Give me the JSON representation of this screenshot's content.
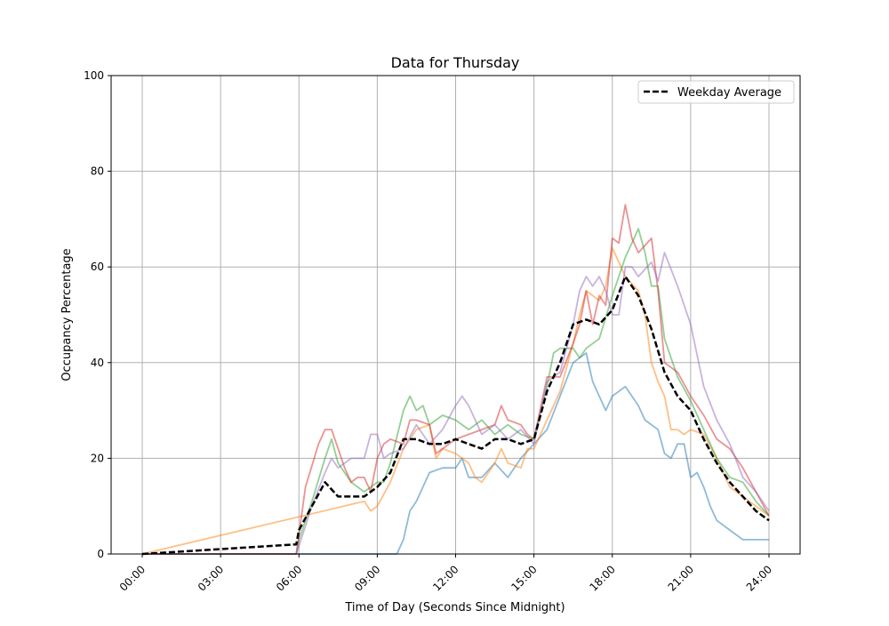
{
  "chart_data": {
    "type": "line",
    "title": "Data for Thursday",
    "xlabel": "Time of Day (Seconds Since Midnight)",
    "ylabel": "Occupancy Percentage",
    "ylim": [
      0,
      100
    ],
    "yticks": [
      0,
      20,
      40,
      60,
      80,
      100
    ],
    "xticks": [
      "00:00",
      "03:00",
      "06:00",
      "09:00",
      "12:00",
      "15:00",
      "18:00",
      "21:00",
      "24:00"
    ],
    "grid": true,
    "legend_placement": "top-right",
    "series": [
      {
        "color": "#1f77b4",
        "alpha": 0.5,
        "style": "solid",
        "points": [
          [
            "00:00",
            0
          ],
          [
            "09:45",
            0
          ],
          [
            "10:00",
            3
          ],
          [
            "10:15",
            9
          ],
          [
            "10:30",
            11
          ],
          [
            "11:00",
            17
          ],
          [
            "11:30",
            18
          ],
          [
            "12:00",
            18
          ],
          [
            "12:15",
            20
          ],
          [
            "12:30",
            16
          ],
          [
            "13:00",
            16
          ],
          [
            "13:30",
            19
          ],
          [
            "14:00",
            16
          ],
          [
            "14:30",
            20
          ],
          [
            "15:00",
            23
          ],
          [
            "15:30",
            26
          ],
          [
            "16:00",
            33
          ],
          [
            "16:30",
            40
          ],
          [
            "17:00",
            42
          ],
          [
            "17:15",
            36
          ],
          [
            "17:45",
            30
          ],
          [
            "18:00",
            33
          ],
          [
            "18:30",
            35
          ],
          [
            "18:45",
            33
          ],
          [
            "19:00",
            31
          ],
          [
            "19:15",
            28
          ],
          [
            "19:45",
            26
          ],
          [
            "20:00",
            21
          ],
          [
            "20:15",
            20
          ],
          [
            "20:30",
            23
          ],
          [
            "20:45",
            23
          ],
          [
            "21:00",
            16
          ],
          [
            "21:15",
            17
          ],
          [
            "21:30",
            14
          ],
          [
            "21:45",
            10
          ],
          [
            "22:00",
            7
          ],
          [
            "22:30",
            5
          ],
          [
            "23:00",
            3
          ],
          [
            "24:00",
            3
          ]
        ]
      },
      {
        "color": "#ff7f0e",
        "alpha": 0.5,
        "style": "solid",
        "points": [
          [
            "00:00",
            0
          ],
          [
            "08:30",
            11
          ],
          [
            "08:45",
            9
          ],
          [
            "09:00",
            10
          ],
          [
            "09:30",
            15
          ],
          [
            "10:00",
            22
          ],
          [
            "10:30",
            26
          ],
          [
            "11:00",
            27
          ],
          [
            "11:15",
            20
          ],
          [
            "11:30",
            22
          ],
          [
            "12:00",
            21
          ],
          [
            "12:30",
            19
          ],
          [
            "12:45",
            16
          ],
          [
            "13:00",
            15
          ],
          [
            "13:30",
            19
          ],
          [
            "13:45",
            22
          ],
          [
            "14:00",
            19
          ],
          [
            "14:30",
            18
          ],
          [
            "14:45",
            22
          ],
          [
            "15:00",
            22
          ],
          [
            "15:30",
            28
          ],
          [
            "16:00",
            34
          ],
          [
            "16:30",
            44
          ],
          [
            "16:45",
            50
          ],
          [
            "17:00",
            55
          ],
          [
            "17:30",
            53
          ],
          [
            "17:45",
            56
          ],
          [
            "18:00",
            64
          ],
          [
            "18:30",
            58
          ],
          [
            "19:00",
            55
          ],
          [
            "19:15",
            50
          ],
          [
            "19:30",
            40
          ],
          [
            "19:45",
            36
          ],
          [
            "20:00",
            33
          ],
          [
            "20:15",
            26
          ],
          [
            "20:30",
            26
          ],
          [
            "20:45",
            25
          ],
          [
            "21:00",
            26
          ],
          [
            "21:30",
            25
          ],
          [
            "22:00",
            20
          ],
          [
            "22:30",
            14
          ],
          [
            "23:00",
            12
          ],
          [
            "23:30",
            10
          ],
          [
            "24:00",
            8
          ]
        ]
      },
      {
        "color": "#2ca02c",
        "alpha": 0.5,
        "style": "solid",
        "points": [
          [
            "00:00",
            0
          ],
          [
            "05:54",
            0
          ],
          [
            "06:00",
            3
          ],
          [
            "06:30",
            11
          ],
          [
            "07:00",
            20
          ],
          [
            "07:15",
            24
          ],
          [
            "07:30",
            19
          ],
          [
            "08:00",
            15
          ],
          [
            "08:30",
            13
          ],
          [
            "09:00",
            15
          ],
          [
            "09:15",
            15
          ],
          [
            "09:30",
            19
          ],
          [
            "10:00",
            30
          ],
          [
            "10:15",
            33
          ],
          [
            "10:30",
            30
          ],
          [
            "10:45",
            31
          ],
          [
            "11:00",
            27
          ],
          [
            "11:30",
            29
          ],
          [
            "12:00",
            28
          ],
          [
            "12:30",
            26
          ],
          [
            "13:00",
            28
          ],
          [
            "13:30",
            25
          ],
          [
            "14:00",
            27
          ],
          [
            "14:30",
            25
          ],
          [
            "15:00",
            24
          ],
          [
            "15:30",
            35
          ],
          [
            "15:45",
            42
          ],
          [
            "16:00",
            43
          ],
          [
            "16:30",
            43
          ],
          [
            "16:45",
            41
          ],
          [
            "17:00",
            43
          ],
          [
            "17:30",
            45
          ],
          [
            "18:00",
            54
          ],
          [
            "18:30",
            62
          ],
          [
            "18:45",
            65
          ],
          [
            "19:00",
            68
          ],
          [
            "19:15",
            63
          ],
          [
            "19:30",
            56
          ],
          [
            "19:45",
            56
          ],
          [
            "20:00",
            45
          ],
          [
            "20:15",
            41
          ],
          [
            "20:30",
            37
          ],
          [
            "21:00",
            32
          ],
          [
            "21:30",
            26
          ],
          [
            "22:00",
            20
          ],
          [
            "22:30",
            16
          ],
          [
            "23:00",
            15
          ],
          [
            "23:30",
            11
          ],
          [
            "24:00",
            8
          ]
        ]
      },
      {
        "color": "#d62728",
        "alpha": 0.5,
        "style": "solid",
        "points": [
          [
            "00:00",
            0
          ],
          [
            "05:54",
            0
          ],
          [
            "06:15",
            14
          ],
          [
            "06:45",
            23
          ],
          [
            "07:00",
            26
          ],
          [
            "07:15",
            26
          ],
          [
            "07:45",
            18
          ],
          [
            "08:00",
            15
          ],
          [
            "08:15",
            16
          ],
          [
            "08:30",
            16
          ],
          [
            "08:45",
            13
          ],
          [
            "09:00",
            20
          ],
          [
            "09:15",
            23
          ],
          [
            "09:30",
            24
          ],
          [
            "10:00",
            23
          ],
          [
            "10:15",
            28
          ],
          [
            "10:30",
            28
          ],
          [
            "11:00",
            27
          ],
          [
            "11:15",
            21
          ],
          [
            "11:30",
            22
          ],
          [
            "12:00",
            24
          ],
          [
            "12:30",
            25
          ],
          [
            "13:00",
            26
          ],
          [
            "13:30",
            27
          ],
          [
            "13:45",
            31
          ],
          [
            "14:00",
            28
          ],
          [
            "14:30",
            27
          ],
          [
            "14:45",
            25
          ],
          [
            "15:00",
            24
          ],
          [
            "15:30",
            37
          ],
          [
            "16:00",
            37
          ],
          [
            "16:30",
            44
          ],
          [
            "16:45",
            48
          ],
          [
            "17:00",
            55
          ],
          [
            "17:15",
            48
          ],
          [
            "17:30",
            54
          ],
          [
            "17:45",
            52
          ],
          [
            "18:00",
            66
          ],
          [
            "18:15",
            65
          ],
          [
            "18:30",
            73
          ],
          [
            "18:45",
            66
          ],
          [
            "19:00",
            63
          ],
          [
            "19:30",
            66
          ],
          [
            "19:45",
            55
          ],
          [
            "20:00",
            40
          ],
          [
            "20:30",
            38
          ],
          [
            "21:00",
            33
          ],
          [
            "21:30",
            29
          ],
          [
            "22:00",
            24
          ],
          [
            "22:30",
            22
          ],
          [
            "23:00",
            18
          ],
          [
            "23:30",
            13
          ],
          [
            "24:00",
            8
          ]
        ]
      },
      {
        "color": "#9467bd",
        "alpha": 0.5,
        "style": "solid",
        "points": [
          [
            "00:00",
            0
          ],
          [
            "05:54",
            0
          ],
          [
            "06:30",
            10
          ],
          [
            "07:00",
            17
          ],
          [
            "07:15",
            20
          ],
          [
            "07:30",
            18
          ],
          [
            "08:00",
            20
          ],
          [
            "08:30",
            20
          ],
          [
            "08:45",
            25
          ],
          [
            "09:00",
            25
          ],
          [
            "09:15",
            20
          ],
          [
            "09:30",
            21
          ],
          [
            "10:00",
            22
          ],
          [
            "10:30",
            27
          ],
          [
            "11:00",
            23
          ],
          [
            "11:30",
            26
          ],
          [
            "12:00",
            31
          ],
          [
            "12:15",
            33
          ],
          [
            "12:30",
            31
          ],
          [
            "13:00",
            25
          ],
          [
            "13:30",
            27
          ],
          [
            "14:00",
            24
          ],
          [
            "14:30",
            26
          ],
          [
            "15:00",
            23
          ],
          [
            "15:30",
            36
          ],
          [
            "16:00",
            38
          ],
          [
            "16:30",
            48
          ],
          [
            "16:45",
            55
          ],
          [
            "17:00",
            58
          ],
          [
            "17:15",
            56
          ],
          [
            "17:30",
            58
          ],
          [
            "17:45",
            55
          ],
          [
            "18:00",
            50
          ],
          [
            "18:15",
            50
          ],
          [
            "18:30",
            60
          ],
          [
            "18:45",
            60
          ],
          [
            "19:00",
            58
          ],
          [
            "19:30",
            61
          ],
          [
            "19:45",
            57
          ],
          [
            "20:00",
            63
          ],
          [
            "20:30",
            56
          ],
          [
            "21:00",
            48
          ],
          [
            "21:30",
            35
          ],
          [
            "22:00",
            28
          ],
          [
            "22:30",
            23
          ],
          [
            "23:00",
            16
          ],
          [
            "23:30",
            13
          ],
          [
            "24:00",
            9
          ]
        ]
      },
      {
        "name": "Weekday Average",
        "color": "#000000",
        "alpha": 1,
        "style": "dashed",
        "points": [
          [
            "00:00",
            0
          ],
          [
            "05:54",
            2
          ],
          [
            "06:00",
            5
          ],
          [
            "06:30",
            10
          ],
          [
            "07:00",
            15
          ],
          [
            "07:30",
            12
          ],
          [
            "08:00",
            12
          ],
          [
            "08:30",
            12
          ],
          [
            "09:00",
            14
          ],
          [
            "09:30",
            17
          ],
          [
            "10:00",
            24
          ],
          [
            "10:30",
            24
          ],
          [
            "11:00",
            23
          ],
          [
            "11:30",
            23
          ],
          [
            "12:00",
            24
          ],
          [
            "12:30",
            23
          ],
          [
            "13:00",
            22
          ],
          [
            "13:30",
            24
          ],
          [
            "14:00",
            24
          ],
          [
            "14:30",
            23
          ],
          [
            "15:00",
            24
          ],
          [
            "15:30",
            34
          ],
          [
            "16:00",
            40
          ],
          [
            "16:30",
            48
          ],
          [
            "17:00",
            49
          ],
          [
            "17:30",
            48
          ],
          [
            "18:00",
            51
          ],
          [
            "18:30",
            58
          ],
          [
            "19:00",
            54
          ],
          [
            "19:30",
            47
          ],
          [
            "20:00",
            38
          ],
          [
            "20:30",
            33
          ],
          [
            "21:00",
            30
          ],
          [
            "21:30",
            24
          ],
          [
            "22:00",
            19
          ],
          [
            "22:30",
            15
          ],
          [
            "23:00",
            12
          ],
          [
            "23:30",
            9
          ],
          [
            "24:00",
            7
          ]
        ]
      }
    ]
  }
}
